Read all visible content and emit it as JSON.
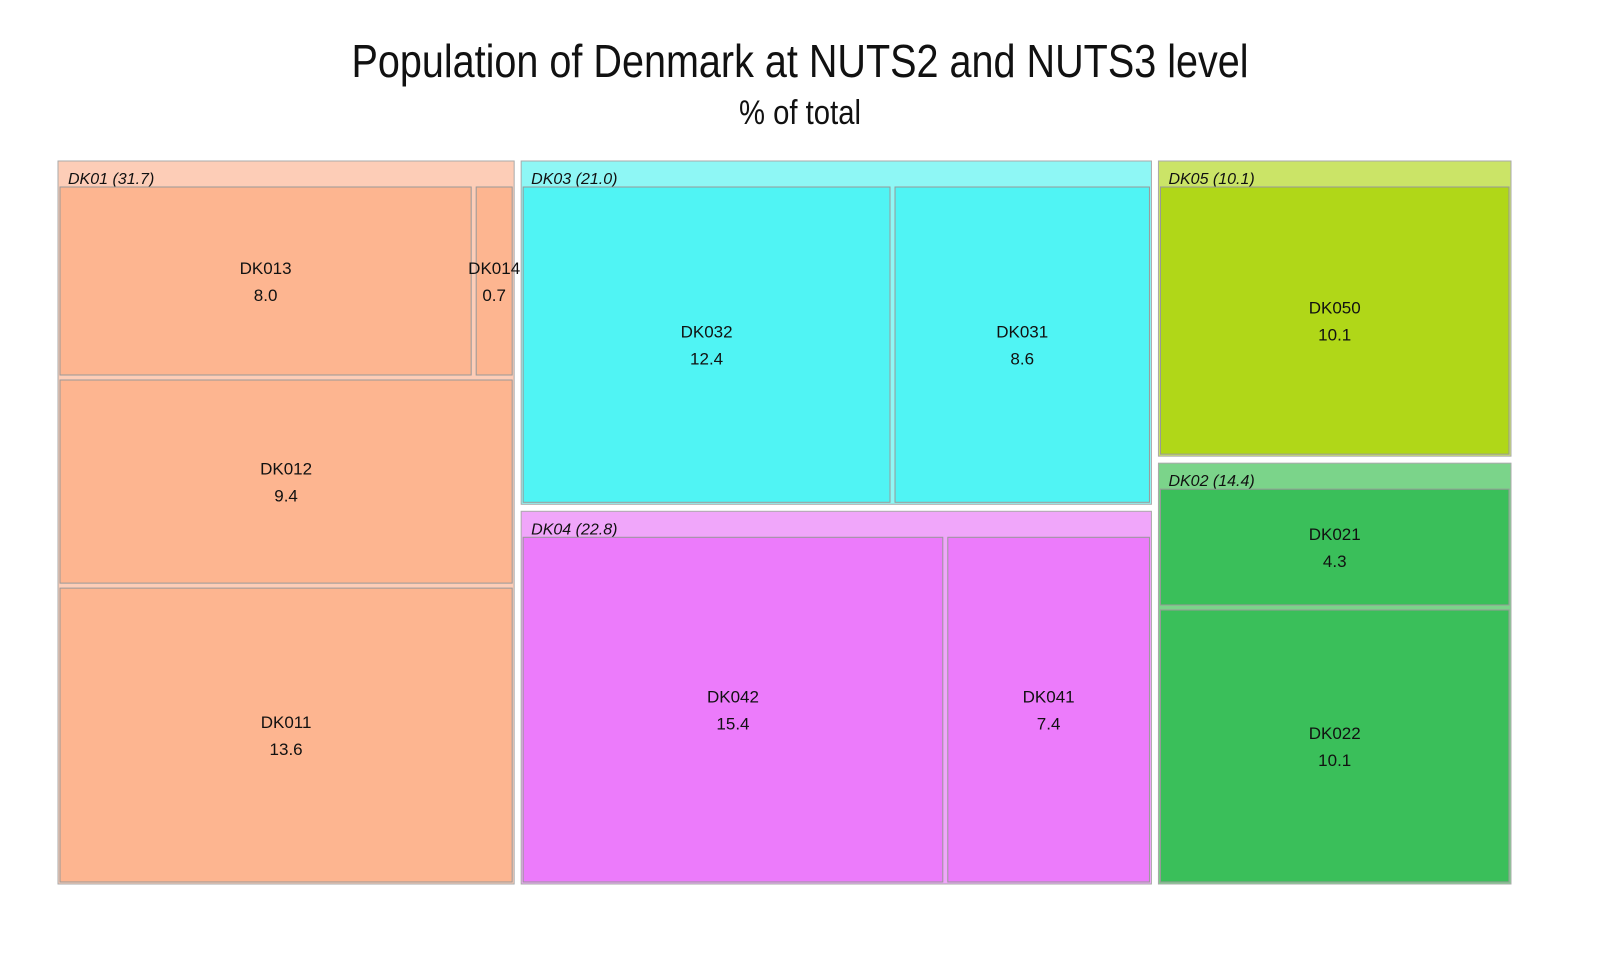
{
  "chart_data": {
    "type": "treemap",
    "title": "Population of Denmark at NUTS2 and NUTS3 level",
    "subtitle": "% of total",
    "groups": [
      {
        "name": "DK01",
        "label": "DK01 (31.7)",
        "value": 31.7,
        "color": "#fdcdb7",
        "leaf_color": "#fdb590",
        "children": [
          {
            "name": "DK013",
            "value": 8.0,
            "value_label": "8.0"
          },
          {
            "name": "DK014",
            "value": 0.7,
            "value_label": "0.7"
          },
          {
            "name": "DK012",
            "value": 9.4,
            "value_label": "9.4"
          },
          {
            "name": "DK011",
            "value": 13.6,
            "value_label": "13.6"
          }
        ]
      },
      {
        "name": "DK03",
        "label": "DK03 (21.0)",
        "value": 21.0,
        "color": "#8ef7f5",
        "leaf_color": "#50f4f4",
        "children": [
          {
            "name": "DK032",
            "value": 12.4,
            "value_label": "12.4"
          },
          {
            "name": "DK031",
            "value": 8.6,
            "value_label": "8.6"
          }
        ]
      },
      {
        "name": "DK04",
        "label": "DK04 (22.8)",
        "value": 22.8,
        "color": "#f0a6fa",
        "leaf_color": "#ec7bfb",
        "children": [
          {
            "name": "DK042",
            "value": 15.4,
            "value_label": "15.4"
          },
          {
            "name": "DK041",
            "value": 7.4,
            "value_label": "7.4"
          }
        ]
      },
      {
        "name": "DK05",
        "label": "DK05 (10.1)",
        "value": 10.1,
        "color": "#cbe467",
        "leaf_color": "#b0d718",
        "children": [
          {
            "name": "DK050",
            "value": 10.1,
            "value_label": "10.1"
          }
        ]
      },
      {
        "name": "DK02",
        "label": "DK02 (14.4)",
        "value": 14.4,
        "color": "#7bd48a",
        "leaf_color": "#3abf5a",
        "children": [
          {
            "name": "DK021",
            "value": 4.3,
            "value_label": "4.3"
          },
          {
            "name": "DK022",
            "value": 10.1,
            "value_label": "10.1"
          }
        ]
      }
    ]
  }
}
